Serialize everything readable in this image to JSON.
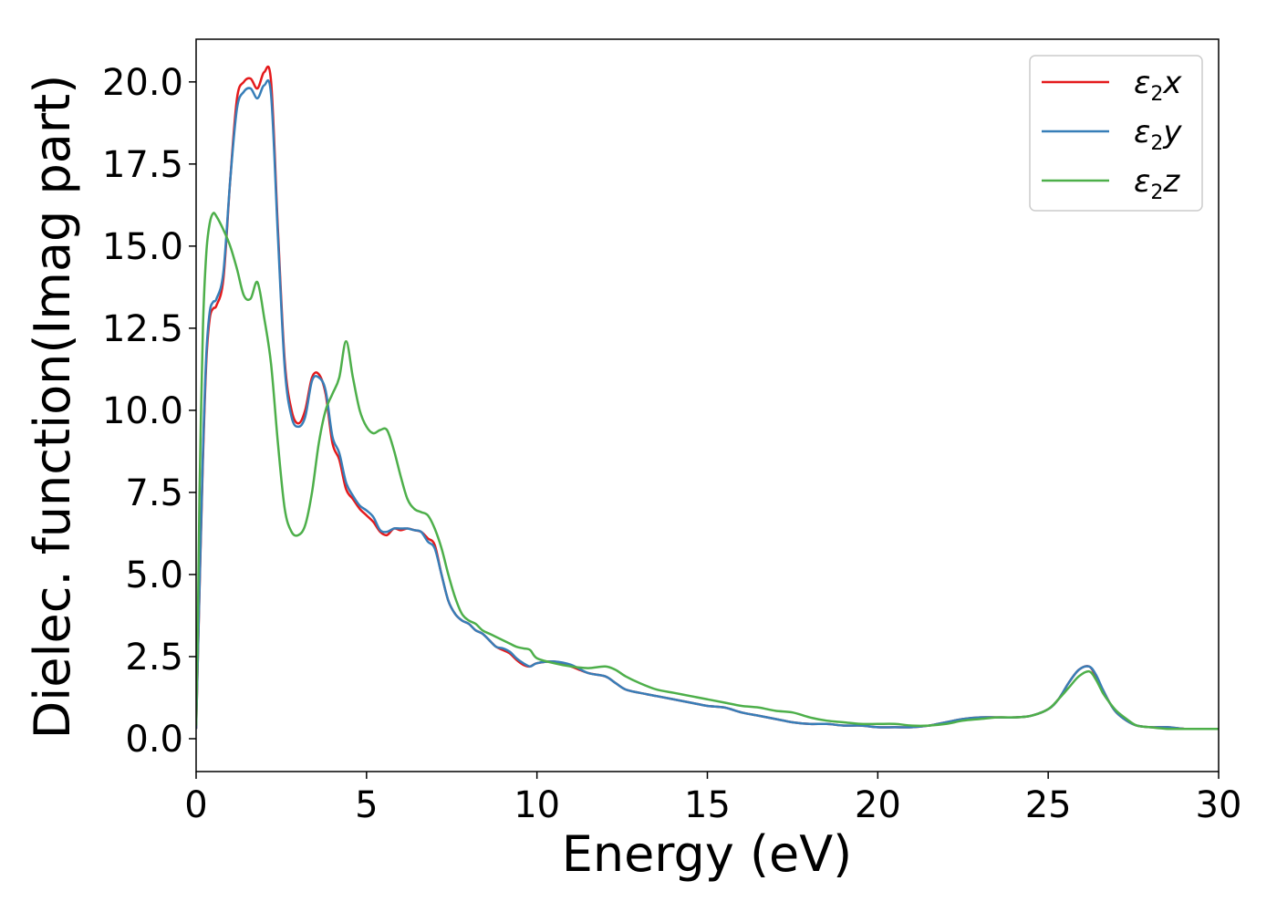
{
  "chart_data": {
    "type": "line",
    "title": "",
    "xlabel": "Energy (eV)",
    "ylabel": "Dielec. function(Imag part)",
    "xlim": [
      0,
      30
    ],
    "ylim": [
      -1.0,
      21.3
    ],
    "xticks": [
      0,
      5,
      10,
      15,
      20,
      25,
      30
    ],
    "xtick_labels": [
      "0",
      "5",
      "10",
      "15",
      "20",
      "25",
      "30"
    ],
    "yticks": [
      0.0,
      2.5,
      5.0,
      7.5,
      10.0,
      12.5,
      15.0,
      17.5,
      20.0
    ],
    "ytick_labels": [
      "0.0",
      "2.5",
      "5.0",
      "7.5",
      "10.0",
      "12.5",
      "15.0",
      "17.5",
      "20.0"
    ],
    "grid": false,
    "legend_position": "top-right",
    "series": [
      {
        "name": "ε₂x",
        "legend_base": "ε",
        "legend_sub": "2",
        "legend_suffix": "x",
        "color": "#e41a1c",
        "x": [
          0,
          0.1,
          0.2,
          0.3,
          0.4,
          0.5,
          0.6,
          0.8,
          1.0,
          1.2,
          1.4,
          1.6,
          1.8,
          2.0,
          2.2,
          2.4,
          2.6,
          2.8,
          3.0,
          3.2,
          3.4,
          3.6,
          3.8,
          4.0,
          4.2,
          4.4,
          4.6,
          4.8,
          5.0,
          5.2,
          5.4,
          5.6,
          5.8,
          6.0,
          6.2,
          6.4,
          6.6,
          6.8,
          7.0,
          7.2,
          7.4,
          7.6,
          7.8,
          8.0,
          8.2,
          8.4,
          8.6,
          8.8,
          9.0,
          9.2,
          9.4,
          9.6,
          9.8,
          10.0,
          10.5,
          11.0,
          11.5,
          12.0,
          12.3,
          12.6,
          13.0,
          13.5,
          14.0,
          14.5,
          15.0,
          15.5,
          16.0,
          16.5,
          17.0,
          17.5,
          18.0,
          18.5,
          19.0,
          19.5,
          20.0,
          20.5,
          21.0,
          21.5,
          22.0,
          22.5,
          23.0,
          23.5,
          24.0,
          24.5,
          25.0,
          25.3,
          25.6,
          25.9,
          26.2,
          26.4,
          26.6,
          26.8,
          27.0,
          27.3,
          27.6,
          28.0,
          28.5,
          29.0,
          29.5,
          30.0
        ],
        "y": [
          0.3,
          4.5,
          8.5,
          11.5,
          12.8,
          13.1,
          13.2,
          14.0,
          17.0,
          19.5,
          20.0,
          20.1,
          19.8,
          20.3,
          20.0,
          15.5,
          11.5,
          10.0,
          9.6,
          10.0,
          11.0,
          11.1,
          10.5,
          9.0,
          8.5,
          7.6,
          7.3,
          7.0,
          6.8,
          6.6,
          6.3,
          6.2,
          6.4,
          6.35,
          6.4,
          6.35,
          6.3,
          6.1,
          5.9,
          5.0,
          4.2,
          3.8,
          3.6,
          3.5,
          3.3,
          3.2,
          3.0,
          2.8,
          2.7,
          2.6,
          2.4,
          2.25,
          2.2,
          2.3,
          2.35,
          2.2,
          2.0,
          1.9,
          1.7,
          1.5,
          1.4,
          1.3,
          1.2,
          1.1,
          1.0,
          0.95,
          0.8,
          0.7,
          0.6,
          0.5,
          0.45,
          0.45,
          0.4,
          0.4,
          0.35,
          0.35,
          0.35,
          0.4,
          0.5,
          0.6,
          0.65,
          0.65,
          0.65,
          0.7,
          0.9,
          1.2,
          1.7,
          2.1,
          2.2,
          1.9,
          1.5,
          1.1,
          0.8,
          0.55,
          0.4,
          0.35,
          0.35,
          0.3,
          0.3,
          0.3
        ]
      },
      {
        "name": "ε₂y",
        "legend_base": "ε",
        "legend_sub": "2",
        "legend_suffix": "y",
        "color": "#377eb8",
        "x": [
          0,
          0.1,
          0.2,
          0.3,
          0.4,
          0.5,
          0.6,
          0.8,
          1.0,
          1.2,
          1.4,
          1.6,
          1.8,
          2.0,
          2.2,
          2.4,
          2.6,
          2.8,
          3.0,
          3.2,
          3.4,
          3.6,
          3.8,
          4.0,
          4.2,
          4.4,
          4.6,
          4.8,
          5.0,
          5.2,
          5.4,
          5.6,
          5.8,
          6.0,
          6.2,
          6.4,
          6.6,
          6.8,
          7.0,
          7.2,
          7.4,
          7.6,
          7.8,
          8.0,
          8.2,
          8.4,
          8.6,
          8.8,
          9.0,
          9.2,
          9.4,
          9.6,
          9.8,
          10.0,
          10.5,
          11.0,
          11.5,
          12.0,
          12.3,
          12.6,
          13.0,
          13.5,
          14.0,
          14.5,
          15.0,
          15.5,
          16.0,
          16.5,
          17.0,
          17.5,
          18.0,
          18.5,
          19.0,
          19.5,
          20.0,
          20.5,
          21.0,
          21.5,
          22.0,
          22.5,
          23.0,
          23.5,
          24.0,
          24.5,
          25.0,
          25.3,
          25.6,
          25.9,
          26.2,
          26.4,
          26.6,
          26.8,
          27.0,
          27.3,
          27.6,
          28.0,
          28.5,
          29.0,
          29.5,
          30.0
        ],
        "y": [
          0.3,
          4.6,
          8.7,
          11.7,
          13.0,
          13.3,
          13.4,
          14.2,
          17.0,
          19.2,
          19.7,
          19.8,
          19.5,
          19.9,
          19.6,
          15.3,
          11.3,
          9.8,
          9.5,
          9.8,
          10.9,
          11.0,
          10.6,
          9.2,
          8.7,
          7.8,
          7.4,
          7.1,
          6.95,
          6.75,
          6.35,
          6.3,
          6.4,
          6.4,
          6.4,
          6.35,
          6.3,
          6.0,
          5.8,
          5.0,
          4.2,
          3.8,
          3.6,
          3.5,
          3.3,
          3.2,
          3.0,
          2.8,
          2.75,
          2.65,
          2.45,
          2.3,
          2.2,
          2.3,
          2.35,
          2.25,
          2.0,
          1.9,
          1.7,
          1.5,
          1.4,
          1.3,
          1.2,
          1.1,
          1.0,
          0.95,
          0.8,
          0.7,
          0.6,
          0.5,
          0.45,
          0.45,
          0.4,
          0.4,
          0.35,
          0.35,
          0.35,
          0.4,
          0.5,
          0.6,
          0.65,
          0.65,
          0.65,
          0.7,
          0.9,
          1.2,
          1.7,
          2.1,
          2.2,
          1.95,
          1.5,
          1.1,
          0.8,
          0.55,
          0.4,
          0.35,
          0.35,
          0.3,
          0.3,
          0.3
        ]
      },
      {
        "name": "ε₂z",
        "legend_base": "ε",
        "legend_sub": "2",
        "legend_suffix": "z",
        "color": "#4daf4a",
        "x": [
          0,
          0.05,
          0.1,
          0.2,
          0.3,
          0.4,
          0.5,
          0.6,
          0.8,
          1.0,
          1.2,
          1.4,
          1.6,
          1.8,
          2.0,
          2.2,
          2.4,
          2.6,
          2.8,
          3.0,
          3.2,
          3.4,
          3.6,
          3.8,
          4.0,
          4.2,
          4.4,
          4.6,
          4.8,
          5.0,
          5.2,
          5.4,
          5.6,
          5.8,
          6.0,
          6.2,
          6.4,
          6.6,
          6.8,
          7.0,
          7.2,
          7.4,
          7.6,
          7.8,
          8.0,
          8.2,
          8.4,
          8.6,
          8.8,
          9.0,
          9.2,
          9.4,
          9.6,
          9.8,
          10.0,
          10.5,
          11.0,
          11.5,
          12.0,
          12.3,
          12.6,
          13.0,
          13.5,
          14.0,
          14.5,
          15.0,
          15.5,
          16.0,
          16.5,
          17.0,
          17.5,
          18.0,
          18.5,
          19.0,
          19.5,
          20.0,
          20.5,
          21.0,
          21.5,
          22.0,
          22.5,
          23.0,
          23.5,
          24.0,
          24.5,
          25.0,
          25.3,
          25.6,
          25.9,
          26.2,
          26.4,
          26.6,
          26.8,
          27.0,
          27.3,
          27.6,
          28.0,
          28.5,
          29.0,
          29.5,
          30.0
        ],
        "y": [
          0.4,
          3.5,
          7.5,
          12.5,
          14.8,
          15.7,
          16.0,
          15.9,
          15.5,
          15.0,
          14.3,
          13.5,
          13.4,
          13.9,
          12.8,
          11.4,
          9.0,
          7.0,
          6.3,
          6.2,
          6.5,
          7.5,
          9.0,
          10.0,
          10.5,
          11.0,
          12.1,
          11.0,
          10.0,
          9.5,
          9.3,
          9.4,
          9.4,
          8.8,
          8.0,
          7.3,
          7.0,
          6.9,
          6.8,
          6.4,
          5.8,
          5.0,
          4.3,
          3.8,
          3.6,
          3.5,
          3.3,
          3.2,
          3.1,
          3.0,
          2.9,
          2.8,
          2.75,
          2.7,
          2.45,
          2.3,
          2.2,
          2.15,
          2.2,
          2.1,
          1.9,
          1.7,
          1.5,
          1.4,
          1.3,
          1.2,
          1.1,
          1.0,
          0.95,
          0.85,
          0.8,
          0.65,
          0.55,
          0.5,
          0.45,
          0.45,
          0.45,
          0.4,
          0.4,
          0.45,
          0.55,
          0.6,
          0.65,
          0.65,
          0.7,
          0.9,
          1.2,
          1.55,
          1.9,
          2.05,
          1.8,
          1.4,
          1.1,
          0.85,
          0.6,
          0.4,
          0.35,
          0.3,
          0.3,
          0.3,
          0.3
        ]
      }
    ]
  }
}
